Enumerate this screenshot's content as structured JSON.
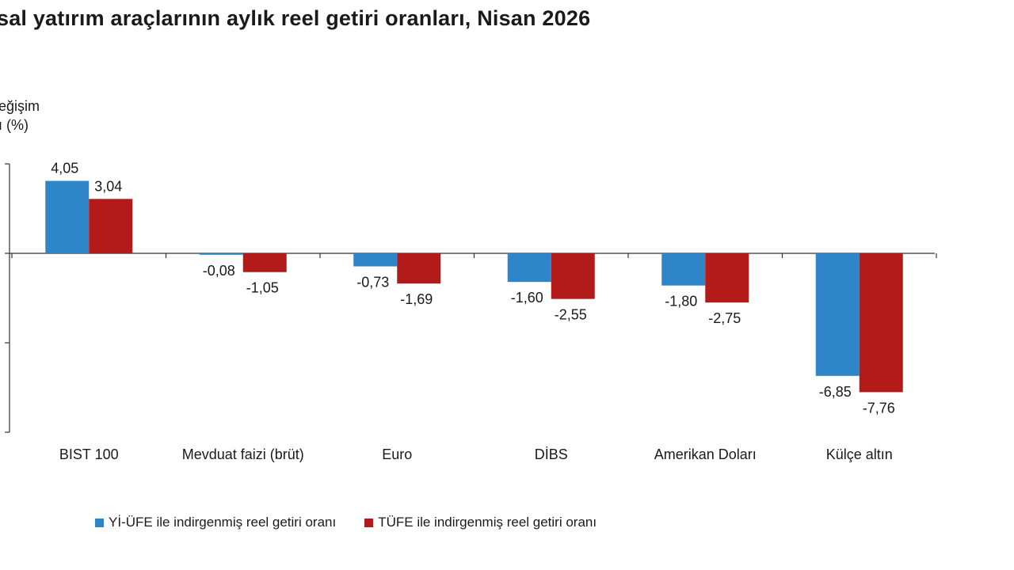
{
  "title": "sal yatırım araçlarının aylık reel getiri oranları, Nisan 2026",
  "ylabel_lines": [
    "eğişim",
    "ı (%)"
  ],
  "chart_data": {
    "type": "bar",
    "title": "sal yatırım araçlarının aylık reel getiri oranları, Nisan 2026",
    "ylabel": "eğişim ı (%)",
    "xlabel": "",
    "ylim": [
      -10,
      5
    ],
    "grid": false,
    "legend_position": "bottom",
    "categories": [
      "BIST 100",
      "Mevduat faizi (brüt)",
      "Euro",
      "DİBS",
      "Amerikan Doları",
      "Külçe altın"
    ],
    "series": [
      {
        "name": "Yİ-ÜFE ile indirgenmiş reel getiri oranı",
        "color": "#2e86c9",
        "values": [
          4.05,
          -0.08,
          -0.73,
          -1.6,
          -1.8,
          -6.85
        ],
        "labels": [
          "4,05",
          "-0,08",
          "-0,73",
          "-1,60",
          "-1,80",
          "-6,85"
        ]
      },
      {
        "name": "TÜFE ile indirgenmiş reel getiri oranı",
        "color": "#b31b1b",
        "values": [
          3.04,
          -1.05,
          -1.69,
          -2.55,
          -2.75,
          -7.76
        ],
        "labels": [
          "3,04",
          "-1,05",
          "-1,69",
          "-2,55",
          "-2,75",
          "-7,76"
        ]
      }
    ]
  }
}
